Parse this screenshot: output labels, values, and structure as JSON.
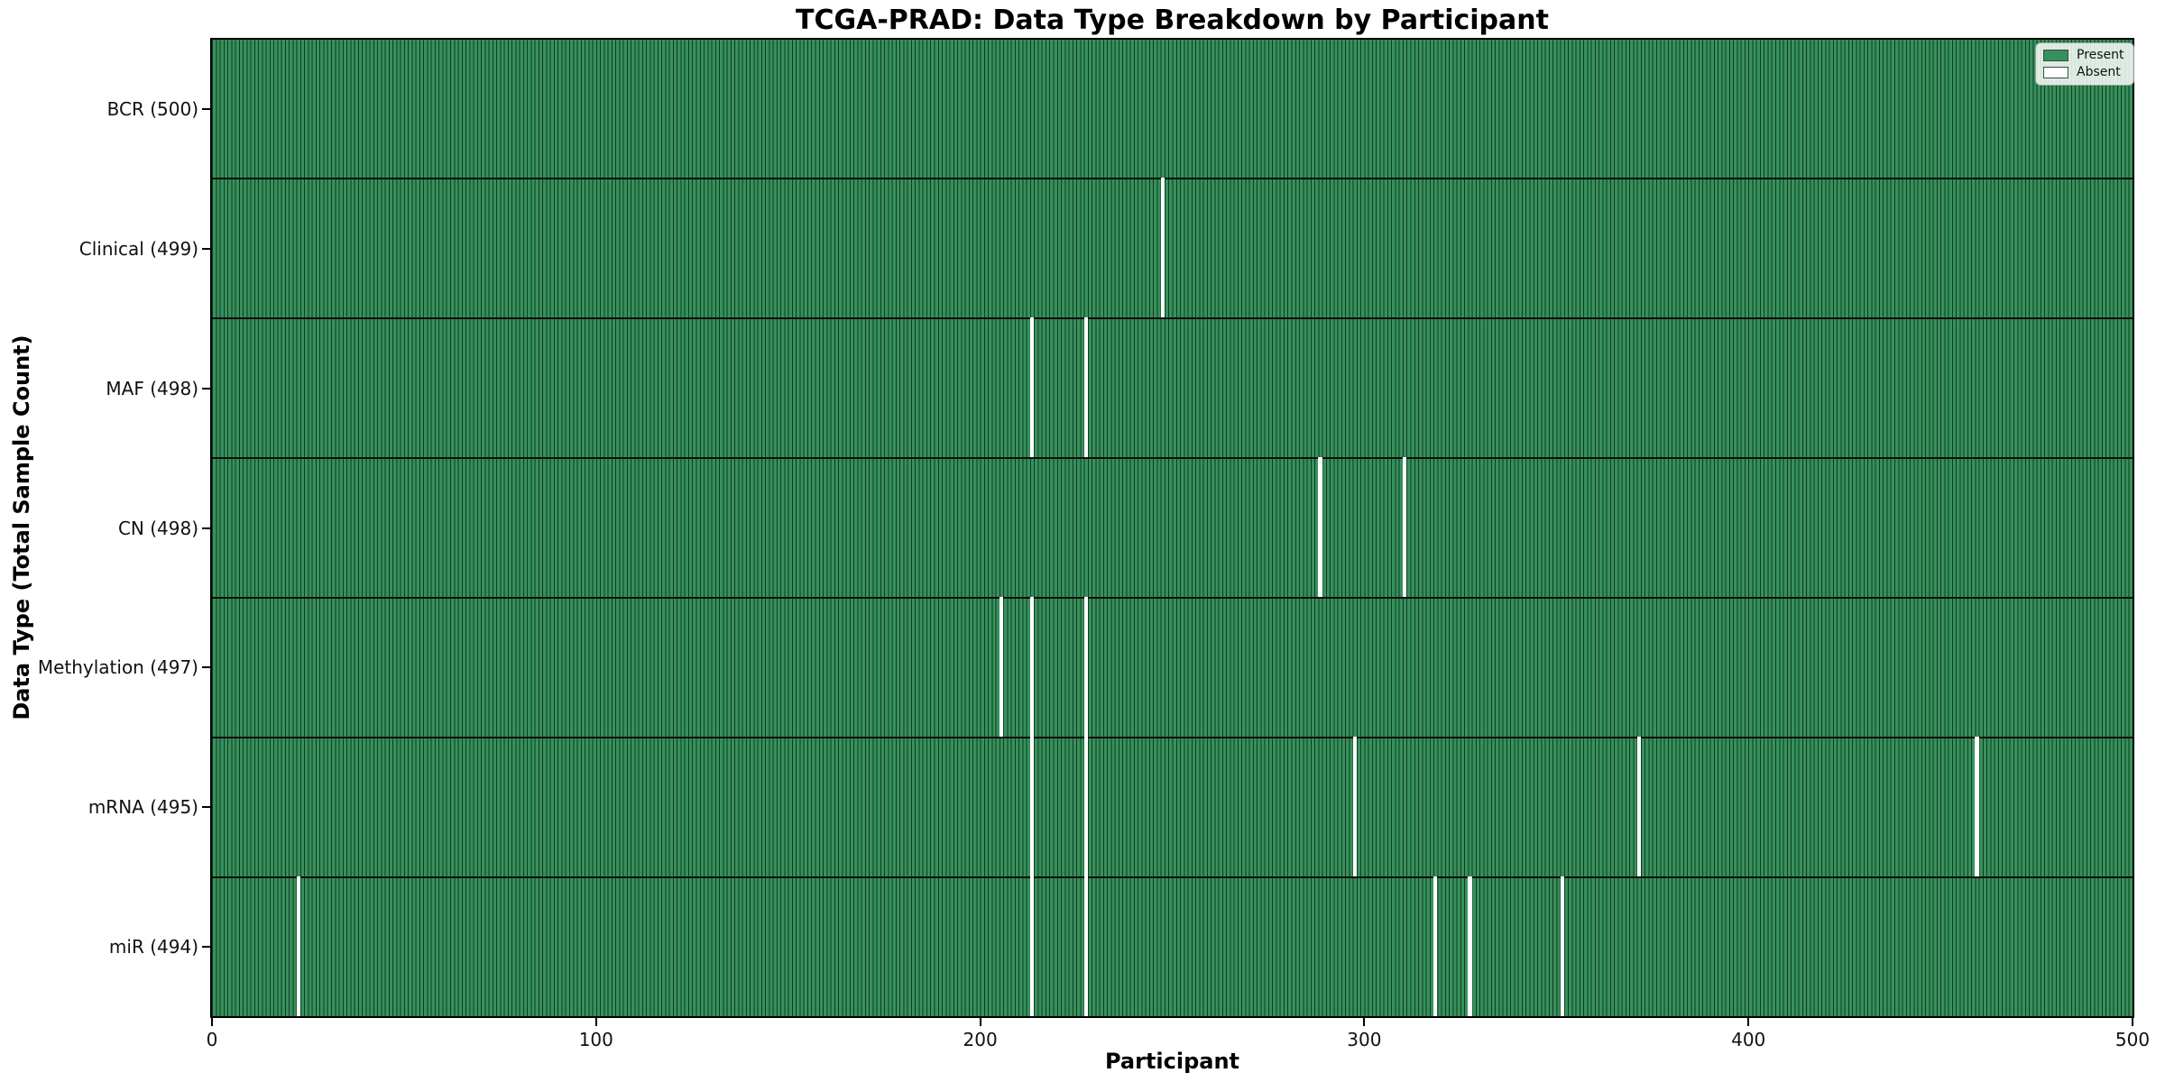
{
  "chart_data": {
    "type": "heatmap",
    "title": "TCGA-PRAD: Data Type Breakdown by Participant",
    "xlabel": "Participant",
    "ylabel": "Data Type (Total Sample Count)",
    "x_range": [
      0,
      500
    ],
    "x_ticks": [
      "0",
      "100",
      "200",
      "300",
      "400",
      "500"
    ],
    "n_participants": 500,
    "grid": false,
    "legend_position": "upper right",
    "legend": [
      {
        "label": "Present",
        "color": "#37915B"
      },
      {
        "label": "Absent",
        "color": "#FFFFFF"
      }
    ],
    "colors": {
      "present": "#37915B",
      "absent": "#FFFFFF",
      "cell_edge": "#123A24",
      "row_separator": "#0D0D0D"
    },
    "rows": [
      {
        "data_type": "BCR",
        "total": 500,
        "label": "BCR (500)",
        "absent_participants": []
      },
      {
        "data_type": "Clinical",
        "total": 499,
        "label": "Clinical (499)",
        "absent_participants": [
          247
        ]
      },
      {
        "data_type": "MAF",
        "total": 498,
        "label": "MAF (498)",
        "absent_participants": [
          213,
          227
        ]
      },
      {
        "data_type": "CN",
        "total": 498,
        "label": "CN (498)",
        "absent_participants": [
          288,
          310
        ]
      },
      {
        "data_type": "Methylation",
        "total": 497,
        "label": "Methylation (497)",
        "absent_participants": [
          205,
          213,
          227
        ]
      },
      {
        "data_type": "mRNA",
        "total": 495,
        "label": "mRNA (495)",
        "absent_participants": [
          213,
          227,
          297,
          371,
          459
        ]
      },
      {
        "data_type": "miR",
        "total": 494,
        "label": "miR (494)",
        "absent_participants": [
          22,
          213,
          227,
          318,
          327,
          351
        ]
      }
    ]
  }
}
